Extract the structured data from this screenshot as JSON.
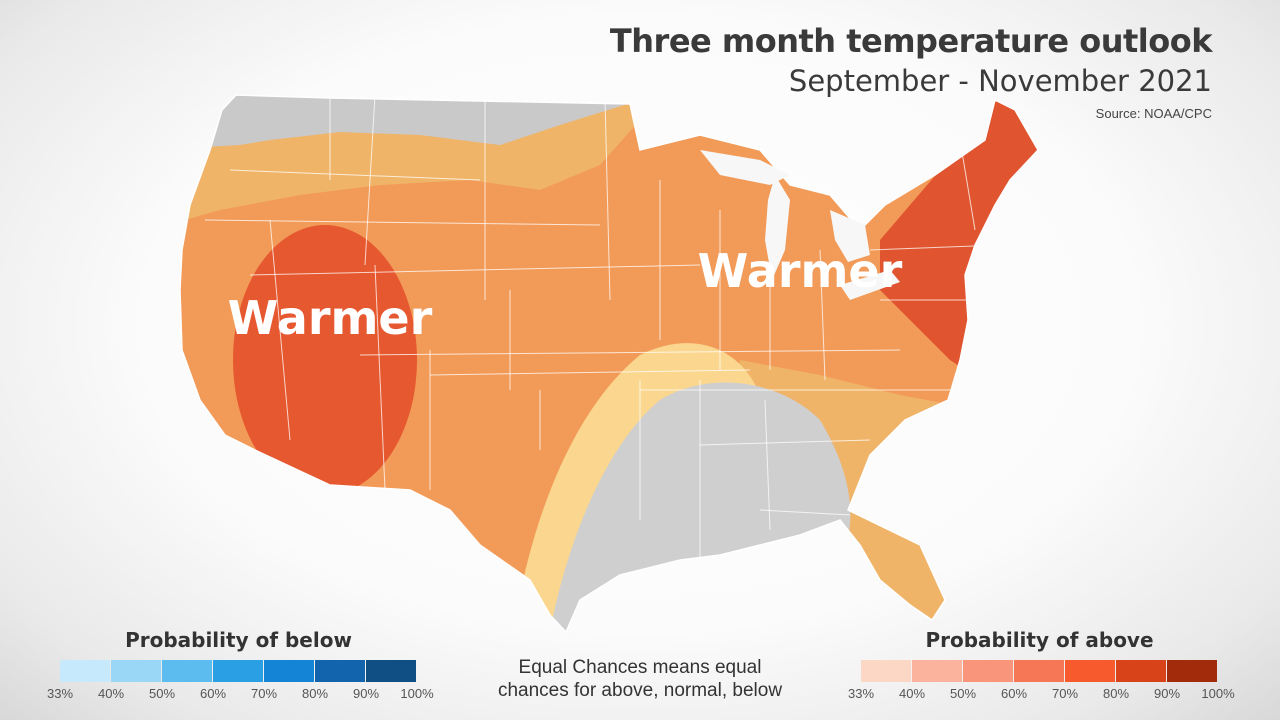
{
  "header": {
    "title": "Three month temperature outlook",
    "subtitle": "September - November 2021",
    "source": "Source: NOAA/CPC"
  },
  "map": {
    "labels": [
      {
        "text": "Warmer",
        "region": "west"
      },
      {
        "text": "Warmer",
        "region": "northeast"
      }
    ],
    "colors": {
      "equal_chances": "#cccccc",
      "above_33_40": "#f0b469",
      "above_40_50": "#f29a58",
      "above_50_60": "#e8603d",
      "above_60_70": "#e0522f",
      "near_33": "#fbd68e"
    }
  },
  "legend_below": {
    "title": "Probability of below",
    "ticks": [
      "33%",
      "40%",
      "50%",
      "60%",
      "70%",
      "80%",
      "90%",
      "100%"
    ],
    "colors": [
      "#c6e9fb",
      "#9ad7f7",
      "#5cbcf0",
      "#2b9fe3",
      "#1484d6",
      "#1264ad",
      "#0f4f84"
    ]
  },
  "legend_above": {
    "title": "Probability of above",
    "ticks": [
      "33%",
      "40%",
      "50%",
      "60%",
      "70%",
      "80%",
      "90%",
      "100%"
    ],
    "colors": [
      "#fdd7c5",
      "#fbb39d",
      "#f8957a",
      "#f67756",
      "#f65a2d",
      "#d9431a",
      "#a22b0c"
    ]
  },
  "note": {
    "line1": "Equal Chances means equal",
    "line2": "chances for above, normal, below"
  }
}
